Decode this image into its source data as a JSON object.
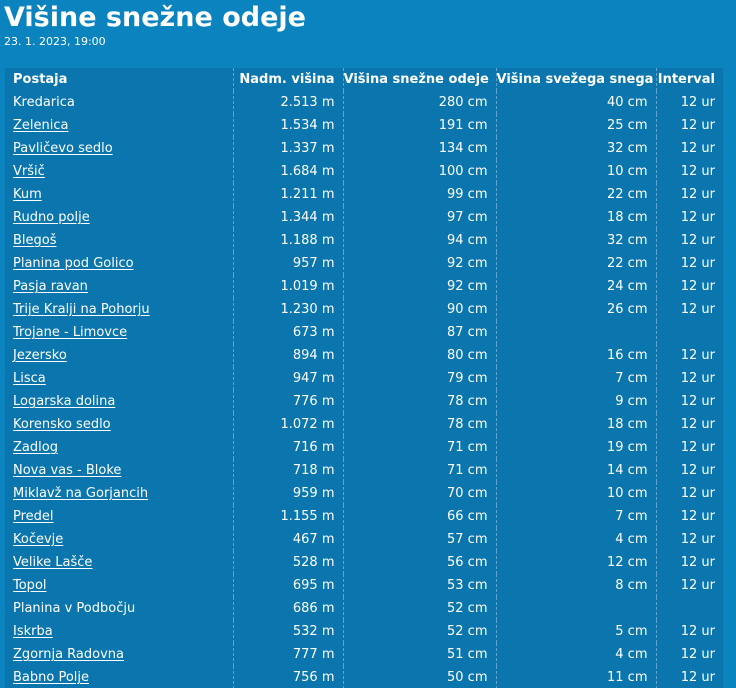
{
  "page": {
    "title": "Višine snežne odeje",
    "date": "23. 1. 2023, 19:00"
  },
  "table": {
    "headers": {
      "station": "Postaja",
      "altitude": "Nadm. višina",
      "snow_depth": "Višina snežne odeje",
      "fresh_snow": "Višina svežega snega",
      "interval": "Interval"
    },
    "rows": [
      {
        "station": "Kredarica",
        "link": false,
        "altitude": "2.513 m",
        "snow_depth": "280 cm",
        "fresh_snow": "40 cm",
        "interval": "12 ur"
      },
      {
        "station": "Zelenica",
        "link": true,
        "altitude": "1.534 m",
        "snow_depth": "191 cm",
        "fresh_snow": "25 cm",
        "interval": "12 ur"
      },
      {
        "station": "Pavličevo sedlo",
        "link": true,
        "altitude": "1.337 m",
        "snow_depth": "134 cm",
        "fresh_snow": "32 cm",
        "interval": "12 ur"
      },
      {
        "station": "Vršič",
        "link": true,
        "altitude": "1.684 m",
        "snow_depth": "100 cm",
        "fresh_snow": "10 cm",
        "interval": "12 ur"
      },
      {
        "station": "Kum",
        "link": true,
        "altitude": "1.211 m",
        "snow_depth": "99 cm",
        "fresh_snow": "22 cm",
        "interval": "12 ur"
      },
      {
        "station": "Rudno polje",
        "link": true,
        "altitude": "1.344 m",
        "snow_depth": "97 cm",
        "fresh_snow": "18 cm",
        "interval": "12 ur"
      },
      {
        "station": "Blegoš",
        "link": true,
        "altitude": "1.188 m",
        "snow_depth": "94 cm",
        "fresh_snow": "32 cm",
        "interval": "12 ur"
      },
      {
        "station": "Planina pod Golico",
        "link": true,
        "altitude": "957 m",
        "snow_depth": "92 cm",
        "fresh_snow": "22 cm",
        "interval": "12 ur"
      },
      {
        "station": "Pasja ravan",
        "link": true,
        "altitude": "1.019 m",
        "snow_depth": "92 cm",
        "fresh_snow": "24 cm",
        "interval": "12 ur"
      },
      {
        "station": "Trije Kralji na Pohorju",
        "link": true,
        "altitude": "1.230 m",
        "snow_depth": "90 cm",
        "fresh_snow": "26 cm",
        "interval": "12 ur"
      },
      {
        "station": "Trojane - Limovce",
        "link": true,
        "altitude": "673 m",
        "snow_depth": "87 cm",
        "fresh_snow": "",
        "interval": ""
      },
      {
        "station": "Jezersko",
        "link": true,
        "altitude": "894 m",
        "snow_depth": "80 cm",
        "fresh_snow": "16 cm",
        "interval": "12 ur"
      },
      {
        "station": "Lisca",
        "link": true,
        "altitude": "947 m",
        "snow_depth": "79 cm",
        "fresh_snow": "7 cm",
        "interval": "12 ur"
      },
      {
        "station": "Logarska dolina",
        "link": true,
        "altitude": "776 m",
        "snow_depth": "78 cm",
        "fresh_snow": "9 cm",
        "interval": "12 ur"
      },
      {
        "station": "Korensko sedlo",
        "link": true,
        "altitude": "1.072 m",
        "snow_depth": "78 cm",
        "fresh_snow": "18 cm",
        "interval": "12 ur"
      },
      {
        "station": "Zadlog",
        "link": true,
        "altitude": "716 m",
        "snow_depth": "71 cm",
        "fresh_snow": "19 cm",
        "interval": "12 ur"
      },
      {
        "station": "Nova vas - Bloke",
        "link": true,
        "altitude": "718 m",
        "snow_depth": "71 cm",
        "fresh_snow": "14 cm",
        "interval": "12 ur"
      },
      {
        "station": "Miklavž na Gorjancih",
        "link": true,
        "altitude": "959 m",
        "snow_depth": "70 cm",
        "fresh_snow": "10 cm",
        "interval": "12 ur"
      },
      {
        "station": "Predel",
        "link": true,
        "altitude": "1.155 m",
        "snow_depth": "66 cm",
        "fresh_snow": "7 cm",
        "interval": "12 ur"
      },
      {
        "station": "Kočevje",
        "link": true,
        "altitude": "467 m",
        "snow_depth": "57 cm",
        "fresh_snow": "4 cm",
        "interval": "12 ur"
      },
      {
        "station": "Velike Lašče",
        "link": true,
        "altitude": "528 m",
        "snow_depth": "56 cm",
        "fresh_snow": "12 cm",
        "interval": "12 ur"
      },
      {
        "station": "Topol",
        "link": true,
        "altitude": "695 m",
        "snow_depth": "53 cm",
        "fresh_snow": "8 cm",
        "interval": "12 ur"
      },
      {
        "station": "Planina v Podbočju",
        "link": false,
        "altitude": "686 m",
        "snow_depth": "52 cm",
        "fresh_snow": "",
        "interval": ""
      },
      {
        "station": "Iskrba",
        "link": true,
        "altitude": "532 m",
        "snow_depth": "52 cm",
        "fresh_snow": "5 cm",
        "interval": "12 ur"
      },
      {
        "station": "Zgornja Radovna",
        "link": true,
        "altitude": "777 m",
        "snow_depth": "51 cm",
        "fresh_snow": "4 cm",
        "interval": "12 ur"
      },
      {
        "station": "Babno Polje",
        "link": true,
        "altitude": "756 m",
        "snow_depth": "50 cm",
        "fresh_snow": "11 cm",
        "interval": "12 ur"
      }
    ]
  }
}
